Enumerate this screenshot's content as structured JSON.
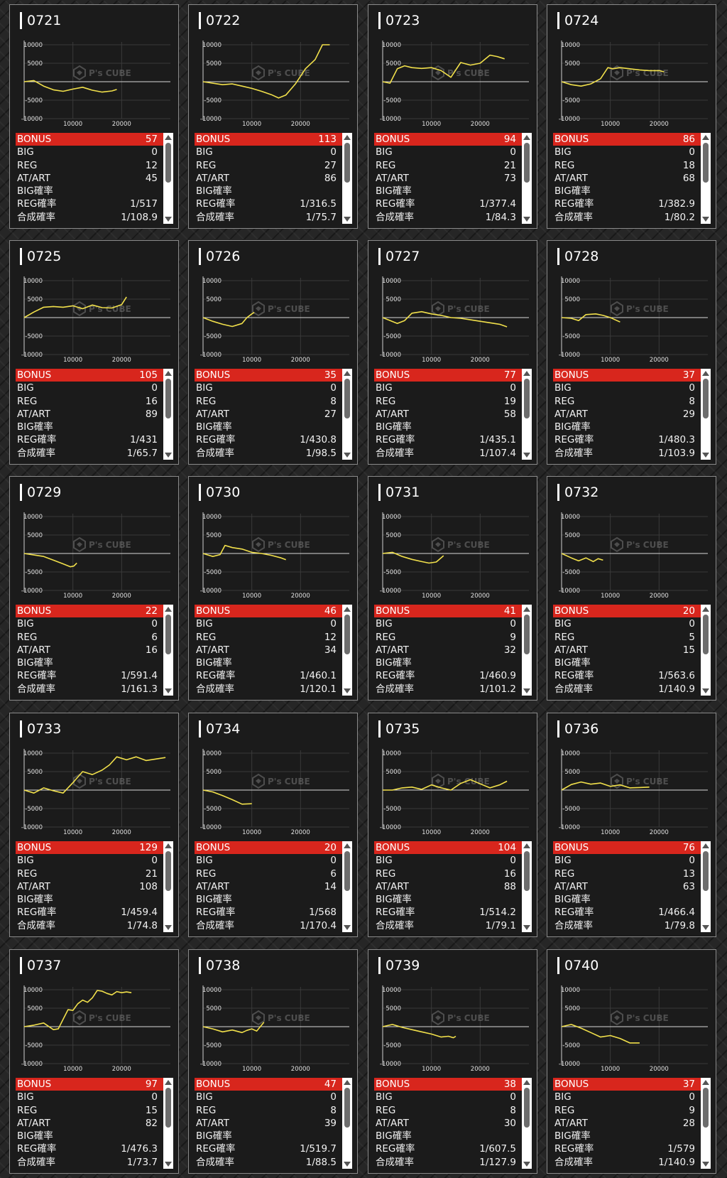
{
  "labels": {
    "bonus": "BONUS",
    "big": "BIG",
    "reg": "REG",
    "at": "AT/ART",
    "big_prob": "BIG確率",
    "reg_prob": "REG確率",
    "total_prob": "合成確率"
  },
  "watermark": {
    "brand": "P's CUBE",
    "icon_name": "cube-logo-icon"
  },
  "colors": {
    "line": "#f1e04b",
    "bonus_bar": "#d8261d",
    "panel": "#1b1b1b"
  },
  "chart_data": [
    {
      "type": "line",
      "title": "0721",
      "ylim": [
        -10000,
        10000
      ],
      "yticks": [
        "10000",
        "5000",
        "-5000",
        "-10000"
      ],
      "xticks": [
        "10000",
        "20000"
      ],
      "x": [
        0,
        2000,
        4000,
        6000,
        8000,
        10000,
        12000,
        14000,
        16000,
        18000,
        19000
      ],
      "y": [
        0,
        300,
        -1200,
        -2200,
        -2600,
        -2000,
        -1500,
        -2300,
        -2800,
        -2500,
        -2100
      ]
    },
    {
      "type": "line",
      "title": "0722",
      "ylim": [
        -10000,
        10000
      ],
      "yticks": [
        "10000",
        "5000",
        "-5000",
        "-10000"
      ],
      "xticks": [
        "10000",
        "20000"
      ],
      "x": [
        0,
        2000,
        4000,
        6000,
        8000,
        10000,
        12000,
        14000,
        15500,
        17000,
        19000,
        21000,
        23000,
        24500,
        26000
      ],
      "y": [
        0,
        -400,
        -800,
        -600,
        -1200,
        -1800,
        -2600,
        -3500,
        -4400,
        -3600,
        -500,
        3500,
        6000,
        10000,
        10000
      ]
    },
    {
      "type": "line",
      "title": "0723",
      "ylim": [
        -10000,
        10000
      ],
      "yticks": [
        "10000",
        "5000",
        "-5000",
        "-10000"
      ],
      "xticks": [
        "10000",
        "20000"
      ],
      "x": [
        0,
        1500,
        3000,
        4500,
        6000,
        8000,
        10000,
        12000,
        14000,
        16000,
        18000,
        20000,
        22000,
        23500,
        25000
      ],
      "y": [
        0,
        -400,
        3500,
        4300,
        3800,
        3600,
        3800,
        3000,
        1200,
        5200,
        4500,
        5000,
        7200,
        6800,
        6200
      ]
    },
    {
      "type": "line",
      "title": "0724",
      "ylim": [
        -10000,
        10000
      ],
      "yticks": [
        "10000",
        "5000",
        "-5000",
        "-10000"
      ],
      "xticks": [
        "10000",
        "20000"
      ],
      "x": [
        0,
        2000,
        4000,
        6000,
        8000,
        9500,
        10500,
        12000,
        14000,
        16000,
        18000,
        20000,
        21000
      ],
      "y": [
        0,
        -800,
        -1200,
        -600,
        800,
        3800,
        3500,
        3800,
        3500,
        3200,
        3000,
        3000,
        2700
      ]
    },
    {
      "type": "line",
      "title": "0725",
      "ylim": [
        -10000,
        10000
      ],
      "yticks": [
        "10000",
        "5000",
        "-5000",
        "-10000"
      ],
      "xticks": [
        "10000",
        "20000"
      ],
      "x": [
        0,
        2000,
        4000,
        6000,
        8000,
        10000,
        12000,
        14000,
        16000,
        18000,
        20000,
        21000
      ],
      "y": [
        0,
        1500,
        2800,
        3000,
        2800,
        3200,
        2400,
        3400,
        2700,
        2600,
        3500,
        5600
      ]
    },
    {
      "type": "line",
      "title": "0726",
      "ylim": [
        -10000,
        10000
      ],
      "yticks": [
        "10000",
        "5000",
        "-5000",
        "-10000"
      ],
      "xticks": [
        "10000",
        "20000"
      ],
      "x": [
        0,
        2000,
        4000,
        6000,
        8000,
        9000,
        10000,
        10500
      ],
      "y": [
        0,
        -1000,
        -1800,
        -2400,
        -1600,
        0,
        1000,
        1400
      ]
    },
    {
      "type": "line",
      "title": "0727",
      "ylim": [
        -10000,
        10000
      ],
      "yticks": [
        "10000",
        "5000",
        "-5000",
        "-10000"
      ],
      "xticks": [
        "10000",
        "20000"
      ],
      "x": [
        0,
        3000,
        4500,
        6000,
        8000,
        10000,
        12000,
        14000,
        16000,
        18000,
        20000,
        22000,
        24000,
        25500
      ],
      "y": [
        0,
        -1600,
        -800,
        1200,
        1600,
        1000,
        600,
        0,
        -200,
        -600,
        -1000,
        -1400,
        -1800,
        -2500
      ]
    },
    {
      "type": "line",
      "title": "0728",
      "ylim": [
        -10000,
        10000
      ],
      "yticks": [
        "10000",
        "5000",
        "-5000",
        "-10000"
      ],
      "xticks": [
        "10000",
        "20000"
      ],
      "x": [
        0,
        2000,
        3500,
        5000,
        7000,
        8500,
        10000,
        12000
      ],
      "y": [
        0,
        -200,
        -800,
        800,
        1000,
        600,
        0,
        -1200
      ]
    },
    {
      "type": "line",
      "title": "0729",
      "ylim": [
        -10000,
        10000
      ],
      "yticks": [
        "10000",
        "5000",
        "-5000",
        "-10000"
      ],
      "xticks": [
        "10000",
        "20000"
      ],
      "x": [
        0,
        2000,
        4000,
        6000,
        8000,
        9500,
        10200,
        10800
      ],
      "y": [
        0,
        -400,
        -800,
        -1800,
        -2800,
        -3600,
        -3400,
        -2600
      ]
    },
    {
      "type": "line",
      "title": "0730",
      "ylim": [
        -10000,
        10000
      ],
      "yticks": [
        "10000",
        "5000",
        "-5000",
        "-10000"
      ],
      "xticks": [
        "10000",
        "20000"
      ],
      "x": [
        0,
        2000,
        3500,
        4500,
        6000,
        8000,
        10000,
        12000,
        14000,
        16000,
        17000
      ],
      "y": [
        0,
        -800,
        -300,
        2200,
        1600,
        1200,
        300,
        0,
        -500,
        -1200,
        -1700
      ]
    },
    {
      "type": "line",
      "title": "0731",
      "ylim": [
        -10000,
        10000
      ],
      "yticks": [
        "10000",
        "5000",
        "-5000",
        "-10000"
      ],
      "xticks": [
        "10000",
        "20000"
      ],
      "x": [
        0,
        2000,
        4000,
        6000,
        8000,
        9500,
        11000,
        12500
      ],
      "y": [
        0,
        300,
        -800,
        -1600,
        -2200,
        -2600,
        -2300,
        -600
      ]
    },
    {
      "type": "line",
      "title": "0732",
      "ylim": [
        -10000,
        10000
      ],
      "yticks": [
        "10000",
        "5000",
        "-5000",
        "-10000"
      ],
      "xticks": [
        "10000",
        "20000"
      ],
      "x": [
        0,
        2000,
        3500,
        5000,
        6500,
        7500,
        8500
      ],
      "y": [
        0,
        -1200,
        -2000,
        -1200,
        -2200,
        -1400,
        -1800
      ]
    },
    {
      "type": "line",
      "title": "0733",
      "ylim": [
        -10000,
        10000
      ],
      "yticks": [
        "10000",
        "5000",
        "-5000",
        "-10000"
      ],
      "xticks": [
        "10000",
        "20000"
      ],
      "x": [
        0,
        2000,
        4000,
        6000,
        8000,
        10000,
        12000,
        14000,
        16000,
        17500,
        19000,
        21000,
        23000,
        25000,
        27000,
        29000
      ],
      "y": [
        0,
        -800,
        600,
        -200,
        -800,
        2000,
        5000,
        4200,
        5400,
        6800,
        9000,
        8200,
        9000,
        8000,
        8400,
        8800
      ]
    },
    {
      "type": "line",
      "title": "0734",
      "ylim": [
        -10000,
        10000
      ],
      "yticks": [
        "10000",
        "5000",
        "-5000",
        "-10000"
      ],
      "xticks": [
        "10000",
        "20000"
      ],
      "x": [
        0,
        2000,
        4000,
        6000,
        8000,
        10000
      ],
      "y": [
        0,
        -500,
        -1500,
        -2600,
        -3800,
        -3700
      ]
    },
    {
      "type": "line",
      "title": "0735",
      "ylim": [
        -10000,
        10000
      ],
      "yticks": [
        "10000",
        "5000",
        "-5000",
        "-10000"
      ],
      "xticks": [
        "10000",
        "20000"
      ],
      "x": [
        0,
        2000,
        4000,
        6000,
        8000,
        10000,
        12000,
        14000,
        16000,
        18000,
        20000,
        22000,
        24000,
        25500
      ],
      "y": [
        0,
        0,
        600,
        800,
        200,
        1400,
        600,
        0,
        1800,
        2800,
        1700,
        600,
        1400,
        2400
      ]
    },
    {
      "type": "line",
      "title": "0736",
      "ylim": [
        -10000,
        10000
      ],
      "yticks": [
        "10000",
        "5000",
        "-5000",
        "-10000"
      ],
      "xticks": [
        "10000",
        "20000"
      ],
      "x": [
        0,
        2000,
        4000,
        6000,
        8000,
        10000,
        12000,
        14000,
        16000,
        18000
      ],
      "y": [
        0,
        1500,
        2200,
        1600,
        1900,
        1000,
        1400,
        600,
        700,
        800
      ]
    },
    {
      "type": "line",
      "title": "0737",
      "ylim": [
        -10000,
        10000
      ],
      "yticks": [
        "10000",
        "5000",
        "-5000",
        "-10000"
      ],
      "xticks": [
        "10000",
        "20000"
      ],
      "x": [
        0,
        2000,
        4000,
        6000,
        7000,
        8000,
        9000,
        10000,
        11000,
        12000,
        13000,
        14000,
        15000,
        16000,
        17000,
        18000,
        19000,
        20000,
        21000,
        22000
      ],
      "y": [
        0,
        400,
        1000,
        -800,
        -600,
        2000,
        4600,
        4400,
        6200,
        7200,
        6600,
        7800,
        9800,
        9600,
        9000,
        8600,
        9500,
        9200,
        9400,
        9200
      ]
    },
    {
      "type": "line",
      "title": "0738",
      "ylim": [
        -10000,
        10000
      ],
      "yticks": [
        "10000",
        "5000",
        "-5000",
        "-10000"
      ],
      "xticks": [
        "10000",
        "20000"
      ],
      "x": [
        0,
        2000,
        4000,
        6000,
        8000,
        9000,
        10000,
        11000,
        12500
      ],
      "y": [
        0,
        -600,
        -1400,
        -900,
        -1600,
        -1000,
        -600,
        -1200,
        1200
      ]
    },
    {
      "type": "line",
      "title": "0739",
      "ylim": [
        -10000,
        10000
      ],
      "yticks": [
        "10000",
        "5000",
        "-5000",
        "-10000"
      ],
      "xticks": [
        "10000",
        "20000"
      ],
      "x": [
        0,
        2000,
        4000,
        6000,
        8000,
        10000,
        12000,
        13500,
        14500,
        15000
      ],
      "y": [
        0,
        600,
        -200,
        -800,
        -1400,
        -2000,
        -2800,
        -2600,
        -3000,
        -2600
      ]
    },
    {
      "type": "line",
      "title": "0740",
      "ylim": [
        -10000,
        10000
      ],
      "yticks": [
        "10000",
        "5000",
        "-5000",
        "-10000"
      ],
      "xticks": [
        "10000",
        "20000"
      ],
      "x": [
        0,
        2000,
        4000,
        6000,
        8000,
        10000,
        12000,
        14000,
        16000
      ],
      "y": [
        0,
        600,
        -400,
        -1600,
        -2800,
        -2400,
        -3200,
        -4400,
        -4400
      ]
    }
  ],
  "machines": [
    {
      "bonus": "57",
      "big": "0",
      "reg": "12",
      "at": "45",
      "big_prob": "",
      "reg_prob": "1/517",
      "total_prob": "1/108.9"
    },
    {
      "bonus": "113",
      "big": "0",
      "reg": "27",
      "at": "86",
      "big_prob": "",
      "reg_prob": "1/316.5",
      "total_prob": "1/75.7"
    },
    {
      "bonus": "94",
      "big": "0",
      "reg": "21",
      "at": "73",
      "big_prob": "",
      "reg_prob": "1/377.4",
      "total_prob": "1/84.3"
    },
    {
      "bonus": "86",
      "big": "0",
      "reg": "18",
      "at": "68",
      "big_prob": "",
      "reg_prob": "1/382.9",
      "total_prob": "1/80.2"
    },
    {
      "bonus": "105",
      "big": "0",
      "reg": "16",
      "at": "89",
      "big_prob": "",
      "reg_prob": "1/431",
      "total_prob": "1/65.7"
    },
    {
      "bonus": "35",
      "big": "0",
      "reg": "8",
      "at": "27",
      "big_prob": "",
      "reg_prob": "1/430.8",
      "total_prob": "1/98.5"
    },
    {
      "bonus": "77",
      "big": "0",
      "reg": "19",
      "at": "58",
      "big_prob": "",
      "reg_prob": "1/435.1",
      "total_prob": "1/107.4"
    },
    {
      "bonus": "37",
      "big": "0",
      "reg": "8",
      "at": "29",
      "big_prob": "",
      "reg_prob": "1/480.3",
      "total_prob": "1/103.9"
    },
    {
      "bonus": "22",
      "big": "0",
      "reg": "6",
      "at": "16",
      "big_prob": "",
      "reg_prob": "1/591.4",
      "total_prob": "1/161.3"
    },
    {
      "bonus": "46",
      "big": "0",
      "reg": "12",
      "at": "34",
      "big_prob": "",
      "reg_prob": "1/460.1",
      "total_prob": "1/120.1"
    },
    {
      "bonus": "41",
      "big": "0",
      "reg": "9",
      "at": "32",
      "big_prob": "",
      "reg_prob": "1/460.9",
      "total_prob": "1/101.2"
    },
    {
      "bonus": "20",
      "big": "0",
      "reg": "5",
      "at": "15",
      "big_prob": "",
      "reg_prob": "1/563.6",
      "total_prob": "1/140.9"
    },
    {
      "bonus": "129",
      "big": "0",
      "reg": "21",
      "at": "108",
      "big_prob": "",
      "reg_prob": "1/459.4",
      "total_prob": "1/74.8"
    },
    {
      "bonus": "20",
      "big": "0",
      "reg": "6",
      "at": "14",
      "big_prob": "",
      "reg_prob": "1/568",
      "total_prob": "1/170.4"
    },
    {
      "bonus": "104",
      "big": "0",
      "reg": "16",
      "at": "88",
      "big_prob": "",
      "reg_prob": "1/514.2",
      "total_prob": "1/79.1"
    },
    {
      "bonus": "76",
      "big": "0",
      "reg": "13",
      "at": "63",
      "big_prob": "",
      "reg_prob": "1/466.4",
      "total_prob": "1/79.8"
    },
    {
      "bonus": "97",
      "big": "0",
      "reg": "15",
      "at": "82",
      "big_prob": "",
      "reg_prob": "1/476.3",
      "total_prob": "1/73.7"
    },
    {
      "bonus": "47",
      "big": "0",
      "reg": "8",
      "at": "39",
      "big_prob": "",
      "reg_prob": "1/519.7",
      "total_prob": "1/88.5"
    },
    {
      "bonus": "38",
      "big": "0",
      "reg": "8",
      "at": "30",
      "big_prob": "",
      "reg_prob": "1/607.5",
      "total_prob": "1/127.9"
    },
    {
      "bonus": "37",
      "big": "0",
      "reg": "9",
      "at": "28",
      "big_prob": "",
      "reg_prob": "1/579",
      "total_prob": "1/140.9"
    }
  ]
}
